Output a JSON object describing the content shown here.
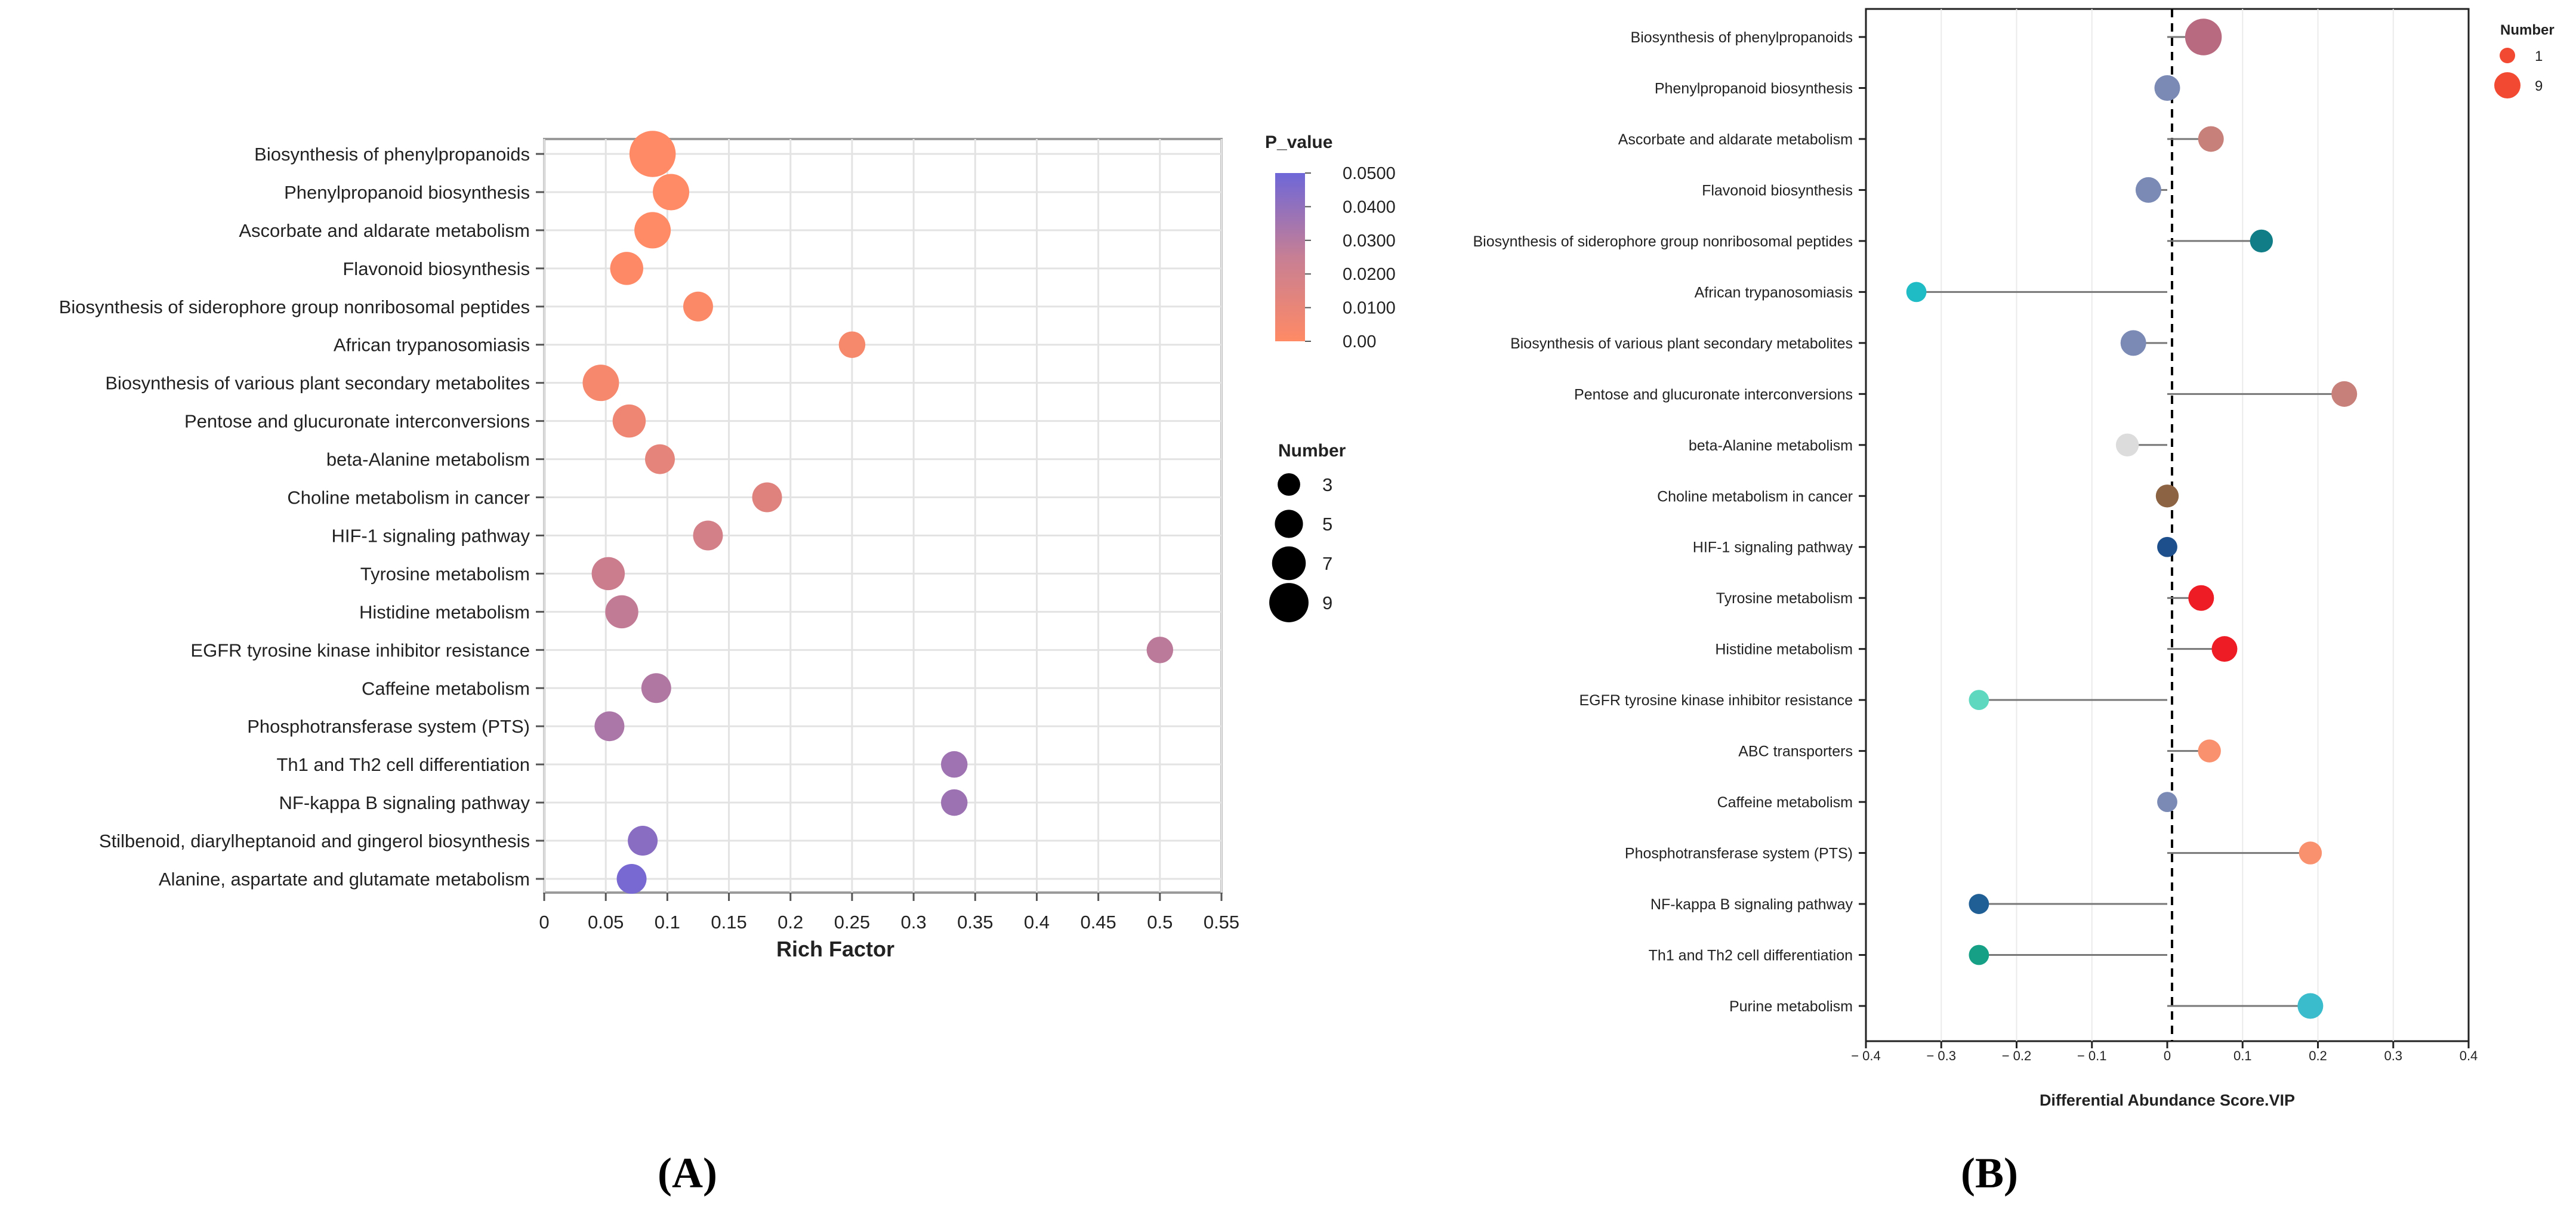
{
  "figure": {
    "panel_a_label": "(A)",
    "panel_b_label": "(B)"
  },
  "chart_data": [
    {
      "type": "scatter",
      "name": "KEGG enrichment bubble chart",
      "xlabel": "Rich Factor",
      "ylabel": "",
      "xlim": [
        0,
        0.55
      ],
      "xticks": [
        0,
        0.05,
        0.1,
        0.15,
        0.2,
        0.25,
        0.3,
        0.35,
        0.4,
        0.45,
        0.5,
        0.55
      ],
      "xtick_labels": [
        "0",
        "0.05",
        "0.1",
        "0.15",
        "0.2",
        "0.25",
        "0.3",
        "0.35",
        "0.4",
        "0.45",
        "0.5",
        "0.55"
      ],
      "grid": true,
      "color_legend": {
        "title": "P_value",
        "ticks": [
          0.05,
          0.04,
          0.03,
          0.02,
          0.01,
          0.0
        ],
        "tick_labels": [
          "0.0500",
          "0.0400",
          "0.0300",
          "0.0200",
          "0.0100",
          "0.00"
        ],
        "low_color": "#ff8a65",
        "high_color": "#6e67d8"
      },
      "size_legend": {
        "title": "Number",
        "values": [
          3,
          5,
          7,
          9
        ],
        "labels": [
          "3",
          "5",
          "7",
          "9"
        ]
      },
      "categories": [
        "Biosynthesis of phenylpropanoids",
        "Phenylpropanoid biosynthesis",
        "Ascorbate and aldarate metabolism",
        "Flavonoid biosynthesis",
        "Biosynthesis of siderophore group nonribosomal peptides",
        "African trypanosomiasis",
        "Biosynthesis of various plant secondary metabolites",
        "Pentose and glucuronate interconversions",
        "beta-Alanine metabolism",
        "Choline metabolism in cancer",
        "HIF-1 signaling pathway",
        "Tyrosine metabolism",
        "Histidine metabolism",
        "EGFR tyrosine kinase inhibitor resistance",
        "Caffeine metabolism",
        "Phosphotransferase system (PTS)",
        "Th1 and Th2 cell differentiation",
        "NF-kappa B signaling pathway",
        "Stilbenoid, diarylheptanoid and gingerol biosynthesis",
        "Alanine, aspartate and glutamate metabolism"
      ],
      "rich_factor": [
        0.088,
        0.103,
        0.088,
        0.067,
        0.125,
        0.25,
        0.046,
        0.069,
        0.094,
        0.181,
        0.133,
        0.052,
        0.063,
        0.5,
        0.091,
        0.053,
        0.333,
        0.333,
        0.08,
        0.071
      ],
      "p_value": [
        0.0001,
        0.0004,
        0.0004,
        0.0008,
        0.0015,
        0.003,
        0.0035,
        0.006,
        0.009,
        0.011,
        0.015,
        0.018,
        0.021,
        0.023,
        0.027,
        0.029,
        0.033,
        0.034,
        0.041,
        0.047
      ],
      "number": [
        9,
        6,
        6,
        5,
        4,
        3,
        6,
        5,
        4,
        4,
        4,
        5,
        5,
        3,
        4,
        4,
        3,
        3,
        4,
        4
      ]
    },
    {
      "type": "lollipop",
      "name": "Differential abundance score",
      "xlabel": "Differential Abundance Score.VIP",
      "ylabel": "",
      "xlim": [
        -0.4,
        0.4
      ],
      "xticks": [
        -0.4,
        -0.3,
        -0.2,
        -0.1,
        0,
        0.1,
        0.2,
        0.3,
        0.4
      ],
      "xtick_labels": [
        "− 0.4",
        "− 0.3",
        "− 0.2",
        "− 0.1",
        "0",
        "0.1",
        "0.2",
        "0.3",
        "0.4"
      ],
      "grid": true,
      "size_legend": {
        "title": "Number",
        "values": [
          1,
          9
        ],
        "labels": [
          "1",
          "9"
        ],
        "color": "#f24a32"
      },
      "categories": [
        "Biosynthesis of phenylpropanoids",
        "Phenylpropanoid biosynthesis",
        "Ascorbate and aldarate metabolism",
        "Flavonoid biosynthesis",
        "Biosynthesis of siderophore group nonribosomal peptides",
        "African trypanosomiasis",
        "Biosynthesis of various plant secondary metabolites",
        "Pentose and glucuronate interconversions",
        "beta-Alanine metabolism",
        "Choline metabolism in cancer",
        "HIF-1 signaling pathway",
        "Tyrosine metabolism",
        "Histidine metabolism",
        "EGFR tyrosine kinase inhibitor resistance",
        "ABC transporters",
        "Caffeine metabolism",
        "Phosphotransferase system (PTS)",
        "NF-kappa B signaling pathway",
        "Th1 and Th2 cell differentiation",
        "Purine metabolism"
      ],
      "values": [
        0.048,
        0.0,
        0.058,
        -0.025,
        0.125,
        -0.333,
        -0.045,
        0.235,
        -0.053,
        0.0,
        0.0,
        0.045,
        0.076,
        -0.25,
        0.056,
        0.0,
        0.19,
        -0.25,
        -0.25,
        0.19
      ],
      "number": [
        9,
        5,
        5,
        5,
        4,
        3,
        5,
        5,
        4,
        4,
        3,
        5,
        5,
        3,
        4,
        3,
        4,
        3,
        3,
        5
      ],
      "colors": [
        "#b86b80",
        "#7a8ab5",
        "#c8807a",
        "#7a8ab5",
        "#117d86",
        "#1fbcc6",
        "#7a8ab5",
        "#c8807a",
        "#dcdcdc",
        "#8c6444",
        "#1d4f8c",
        "#ee1c25",
        "#ee1c25",
        "#5ed9c0",
        "#f9906e",
        "#7a8ab5",
        "#f9906e",
        "#1f5f95",
        "#16a085",
        "#3bbccc"
      ]
    }
  ]
}
